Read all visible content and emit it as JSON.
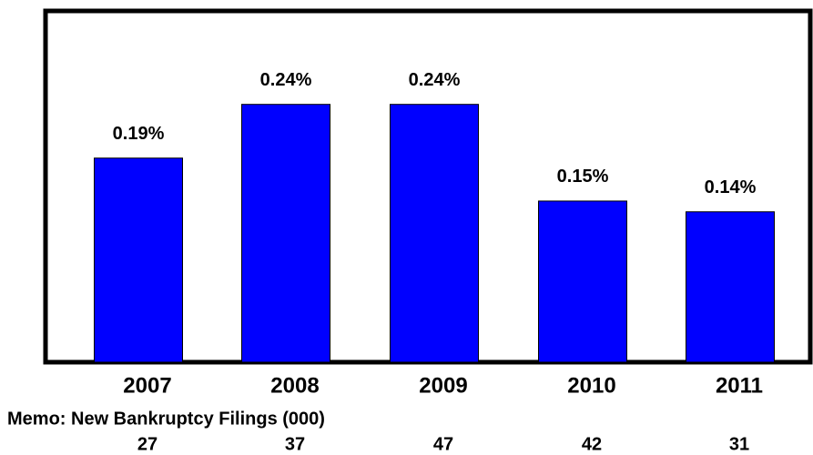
{
  "chart_data": {
    "type": "bar",
    "categories": [
      "2007",
      "2008",
      "2009",
      "2010",
      "2011"
    ],
    "values": [
      0.19,
      0.24,
      0.24,
      0.15,
      0.14
    ],
    "value_labels": [
      "0.19%",
      "0.24%",
      "0.24%",
      "0.15%",
      "0.14%"
    ],
    "color": "#0000ff",
    "ylim": [
      0,
      0.327
    ],
    "memo_label": "Memo: New Bankruptcy Filings (000)",
    "memo_values": [
      27,
      37,
      47,
      42,
      31
    ]
  }
}
